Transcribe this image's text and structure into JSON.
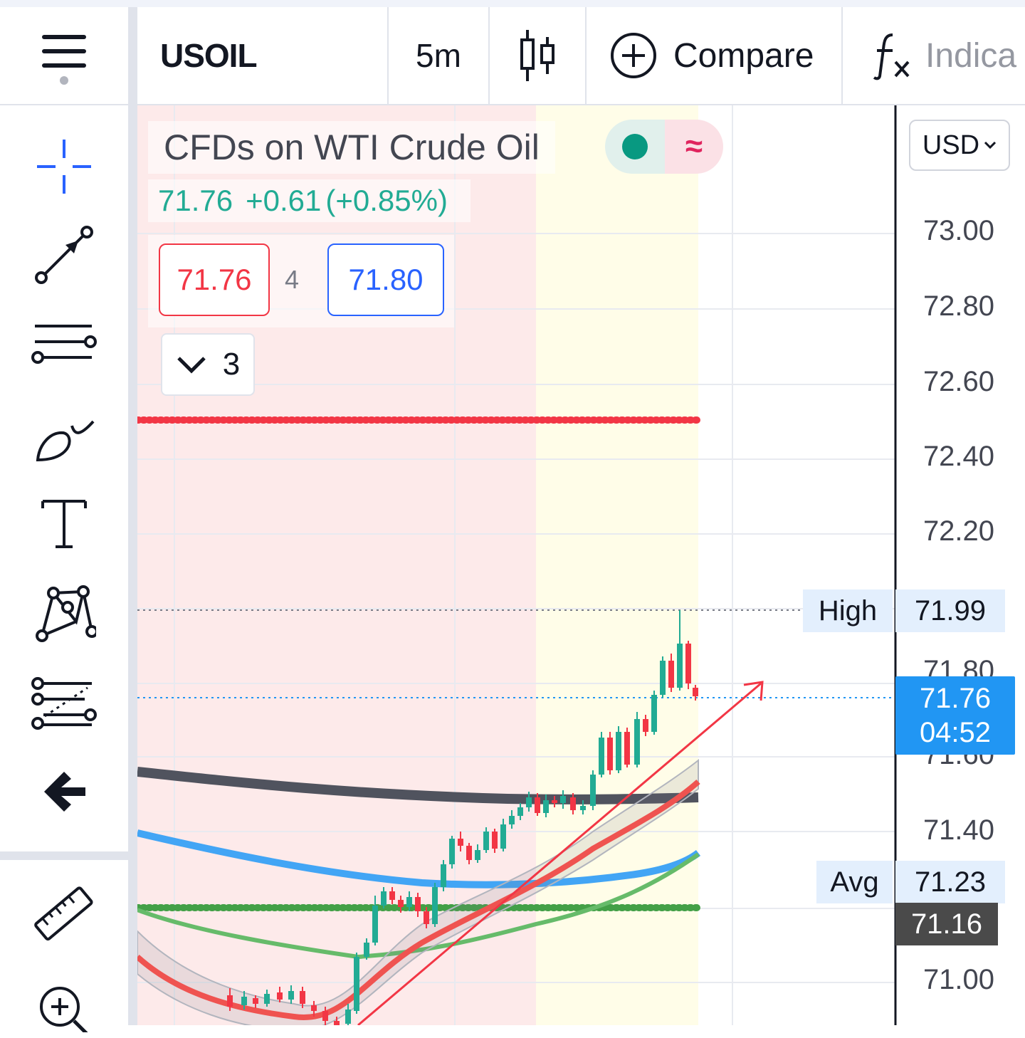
{
  "toolbar": {
    "symbol": "USOIL",
    "interval": "5m",
    "compare_label": "Compare",
    "indicators_label": "Indica"
  },
  "sidebar": {
    "tools": [
      "hamburger-menu-icon",
      "crosshair-icon",
      "trend-line-icon",
      "parallel-lines-icon",
      "brush-icon",
      "text-icon",
      "pattern-icon",
      "fib-icon",
      "back-arrow-icon",
      "ruler-icon",
      "zoom-in-icon"
    ]
  },
  "legend": {
    "title": "CFDs on WTI Crude Oil",
    "last": "71.76",
    "change": "+0.61",
    "change_pct": "(+0.85%)",
    "status_icon_2": "≈"
  },
  "trade": {
    "sell": "71.76",
    "spread": "4",
    "buy": "71.80"
  },
  "collapse": {
    "count": "3"
  },
  "axis": {
    "currency": "USD",
    "ticks": [
      "73.00",
      "72.80",
      "72.60",
      "72.40",
      "72.20",
      "71.40",
      "71.00"
    ],
    "hidden_tick_top": "71.80",
    "hidden_tick_bottom": "71.60",
    "high_label": "High",
    "high_value": "71.99",
    "avg_label": "Avg",
    "avg_value": "71.23",
    "price": "71.76",
    "countdown": "04:52",
    "low_value": "71.16"
  },
  "colors": {
    "up": "#22ab94",
    "down": "#f23645",
    "accent": "#2196f3",
    "session_red_bg": "#fdeaea",
    "session_yellow_bg": "#fffde8"
  }
}
